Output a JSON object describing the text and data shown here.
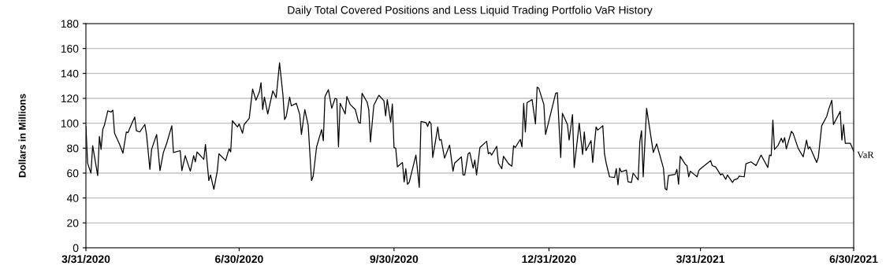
{
  "chart_data": {
    "type": "line",
    "title": "Daily Total Covered Positions and Less Liquid Trading Portfolio VaR History",
    "ylabel": "Dollars in Millions",
    "x": [
      "2020-03-31",
      "2020-04-01",
      "2020-04-03",
      "2020-04-04",
      "2020-04-07",
      "2020-04-08",
      "2020-04-09",
      "2020-04-10",
      "2020-04-11",
      "2020-04-13",
      "2020-04-15",
      "2020-04-16",
      "2020-04-17",
      "2020-04-20",
      "2020-04-22",
      "2020-04-24",
      "2020-04-25",
      "2020-04-27",
      "2020-04-29",
      "2020-04-30",
      "2020-05-02",
      "2020-05-05",
      "2020-05-06",
      "2020-05-08",
      "2020-05-09",
      "2020-05-12",
      "2020-05-14",
      "2020-05-16",
      "2020-05-18",
      "2020-05-21",
      "2020-05-22",
      "2020-05-26",
      "2020-05-27",
      "2020-05-29",
      "2020-06-01",
      "2020-06-03",
      "2020-06-04",
      "2020-06-05",
      "2020-06-09",
      "2020-06-10",
      "2020-06-12",
      "2020-06-13",
      "2020-06-15",
      "2020-06-17",
      "2020-06-18",
      "2020-06-22",
      "2020-06-24",
      "2020-06-25",
      "2020-06-26",
      "2020-06-29",
      "2020-06-30",
      "2020-07-02",
      "2020-07-03",
      "2020-07-06",
      "2020-07-08",
      "2020-07-10",
      "2020-07-12",
      "2020-07-13",
      "2020-07-14",
      "2020-07-15",
      "2020-07-17",
      "2020-07-20",
      "2020-07-22",
      "2020-07-24",
      "2020-07-26",
      "2020-07-27",
      "2020-07-28",
      "2020-07-30",
      "2020-07-31",
      "2020-08-03",
      "2020-08-05",
      "2020-08-06",
      "2020-08-08",
      "2020-08-10",
      "2020-08-12",
      "2020-08-13",
      "2020-08-15",
      "2020-08-18",
      "2020-08-19",
      "2020-08-20",
      "2020-08-22",
      "2020-08-24",
      "2020-08-26",
      "2020-08-27",
      "2020-08-28",
      "2020-08-29",
      "2020-09-01",
      "2020-09-02",
      "2020-09-04",
      "2020-09-07",
      "2020-09-09",
      "2020-09-10",
      "2020-09-11",
      "2020-09-14",
      "2020-09-15",
      "2020-09-16",
      "2020-09-18",
      "2020-09-21",
      "2020-09-24",
      "2020-09-25",
      "2020-09-26",
      "2020-09-28",
      "2020-09-29",
      "2020-09-30",
      "2020-10-01",
      "2020-10-02",
      "2020-10-05",
      "2020-10-06",
      "2020-10-07",
      "2020-10-08",
      "2020-10-09",
      "2020-10-13",
      "2020-10-15",
      "2020-10-16",
      "2020-10-19",
      "2020-10-20",
      "2020-10-21",
      "2020-10-22",
      "2020-10-23",
      "2020-10-26",
      "2020-10-27",
      "2020-10-28",
      "2020-10-30",
      "2020-11-02",
      "2020-11-04",
      "2020-11-05",
      "2020-11-09",
      "2020-11-10",
      "2020-11-11",
      "2020-11-13",
      "2020-11-14",
      "2020-11-16",
      "2020-11-17",
      "2020-11-18",
      "2020-11-20",
      "2020-11-24",
      "2020-11-25",
      "2020-11-26",
      "2020-11-27",
      "2020-11-30",
      "2020-12-01",
      "2020-12-03",
      "2020-12-04",
      "2020-12-07",
      "2020-12-09",
      "2020-12-10",
      "2020-12-11",
      "2020-12-14",
      "2020-12-15",
      "2020-12-16",
      "2020-12-17",
      "2020-12-18",
      "2020-12-21",
      "2020-12-23",
      "2020-12-24",
      "2020-12-25",
      "2020-12-28",
      "2020-12-29",
      "2021-01-04",
      "2021-01-05",
      "2021-01-07",
      "2021-01-08",
      "2021-01-11",
      "2021-01-12",
      "2021-01-14",
      "2021-01-15",
      "2021-01-18",
      "2021-01-20",
      "2021-01-21",
      "2021-01-22",
      "2021-01-25",
      "2021-01-26",
      "2021-01-28",
      "2021-01-29",
      "2021-02-01",
      "2021-02-02",
      "2021-02-03",
      "2021-02-05",
      "2021-02-08",
      "2021-02-09",
      "2021-02-10",
      "2021-02-11",
      "2021-02-12",
      "2021-02-15",
      "2021-02-16",
      "2021-02-18",
      "2021-02-19",
      "2021-02-22",
      "2021-02-23",
      "2021-02-24",
      "2021-02-25",
      "2021-02-27",
      "2021-03-03",
      "2021-03-05",
      "2021-03-09",
      "2021-03-10",
      "2021-03-11",
      "2021-03-12",
      "2021-03-16",
      "2021-03-17",
      "2021-03-18",
      "2021-03-19",
      "2021-03-22",
      "2021-03-23",
      "2021-03-24",
      "2021-03-25",
      "2021-03-29",
      "2021-03-30",
      "2021-03-31",
      "2021-04-06",
      "2021-04-07",
      "2021-04-09",
      "2021-04-12",
      "2021-04-13",
      "2021-04-15",
      "2021-04-16",
      "2021-04-19",
      "2021-04-20",
      "2021-04-22",
      "2021-04-23",
      "2021-04-26",
      "2021-04-27",
      "2021-04-30",
      "2021-05-03",
      "2021-05-06",
      "2021-05-10",
      "2021-05-11",
      "2021-05-12",
      "2021-05-13",
      "2021-05-14",
      "2021-05-16",
      "2021-05-18",
      "2021-05-19",
      "2021-05-20",
      "2021-05-21",
      "2021-05-24",
      "2021-05-25",
      "2021-05-28",
      "2021-05-31",
      "2021-06-02",
      "2021-06-03",
      "2021-06-04",
      "2021-06-08",
      "2021-06-09",
      "2021-06-11",
      "2021-06-14",
      "2021-06-15",
      "2021-06-17",
      "2021-06-18",
      "2021-06-22",
      "2021-06-23",
      "2021-06-24",
      "2021-06-25",
      "2021-06-28",
      "2021-06-30"
    ],
    "series": [
      {
        "name": "VaR",
        "color": "#000000",
        "values": [
          97.5,
          68,
          60,
          82,
          58,
          89.5,
          79,
          95,
          98.5,
          110,
          109,
          110.5,
          92,
          83,
          76,
          93,
          92.5,
          99,
          105,
          94,
          93,
          99,
          91,
          63,
          79,
          91,
          62,
          76.5,
          84,
          98,
          76.5,
          78,
          62,
          74,
          61.5,
          74,
          69,
          77,
          71,
          83,
          54,
          58.5,
          47,
          61.5,
          75.5,
          70,
          79.5,
          77,
          102,
          97,
          99.5,
          92,
          99,
          104,
          127.5,
          118.5,
          125,
          132.5,
          111,
          121,
          107.5,
          126,
          120.5,
          148.5,
          123,
          103,
          105.5,
          121,
          114,
          116,
          107,
          91,
          111,
          98.5,
          54,
          57.5,
          81,
          95,
          86,
          121.5,
          127,
          112,
          120,
          119.5,
          81,
          116,
          107.5,
          121.5,
          115,
          111,
          100.5,
          100,
          124,
          117,
          111,
          85,
          114.5,
          122.5,
          118,
          106,
          119,
          101,
          115.5,
          80.5,
          80,
          65,
          68.5,
          53,
          63.5,
          51,
          52.5,
          74.5,
          48.5,
          101.5,
          100.5,
          97.5,
          101.5,
          99.5,
          72.5,
          97,
          86.5,
          87,
          72,
          82.5,
          61.5,
          68,
          73,
          58.5,
          58.5,
          75.5,
          76.5,
          64,
          70.5,
          58.5,
          80.5,
          85.5,
          75.5,
          76.5,
          74.5,
          81.5,
          68,
          63.5,
          73.5,
          67.5,
          65.5,
          82,
          80.5,
          87,
          81,
          116,
          93,
          116.5,
          119,
          99.5,
          129,
          128,
          115,
          91,
          124,
          124.5,
          72.5,
          108,
          99,
          86.5,
          107,
          64.5,
          100,
          75,
          93,
          78,
          86,
          68.5,
          97,
          94.5,
          98,
          75.5,
          68,
          57,
          56.5,
          63.5,
          50.5,
          64,
          61,
          62.5,
          53,
          52.5,
          60,
          54.5,
          85.5,
          94,
          57,
          112,
          76.5,
          83.5,
          64,
          47.5,
          46.5,
          58,
          59,
          63,
          51,
          73.5,
          67,
          66,
          57,
          61.5,
          57,
          62,
          63.5,
          70,
          66,
          65,
          58.5,
          59.5,
          55,
          58.5,
          52.5,
          54.5,
          55.5,
          57.5,
          57,
          67.5,
          69,
          66,
          74.5,
          64.5,
          74.5,
          74,
          102.5,
          79,
          82,
          88,
          84.5,
          88.5,
          79.5,
          93.5,
          92,
          80,
          73,
          86.5,
          79.5,
          81,
          68.5,
          72.5,
          98,
          105.5,
          110.5,
          118.5,
          99,
          109.5,
          86.5,
          99,
          84,
          84,
          77.5
        ]
      }
    ],
    "xlim": [
      "2020-03-31",
      "2021-06-30"
    ],
    "xticks": [
      {
        "value": "2020-03-31",
        "label": "3/31/2020"
      },
      {
        "value": "2020-06-30",
        "label": "6/30/2020"
      },
      {
        "value": "2020-09-30",
        "label": "9/30/2020"
      },
      {
        "value": "2020-12-31",
        "label": "12/31/2020"
      },
      {
        "value": "2021-03-31",
        "label": "3/31/2021"
      },
      {
        "value": "2021-06-30",
        "label": "6/30/2021"
      }
    ],
    "ylim": [
      0,
      180
    ],
    "yticks": [
      0,
      20,
      40,
      60,
      80,
      100,
      120,
      140,
      160,
      180
    ],
    "grid": "y",
    "legend": false,
    "marker": "none",
    "line_style": "solid"
  }
}
